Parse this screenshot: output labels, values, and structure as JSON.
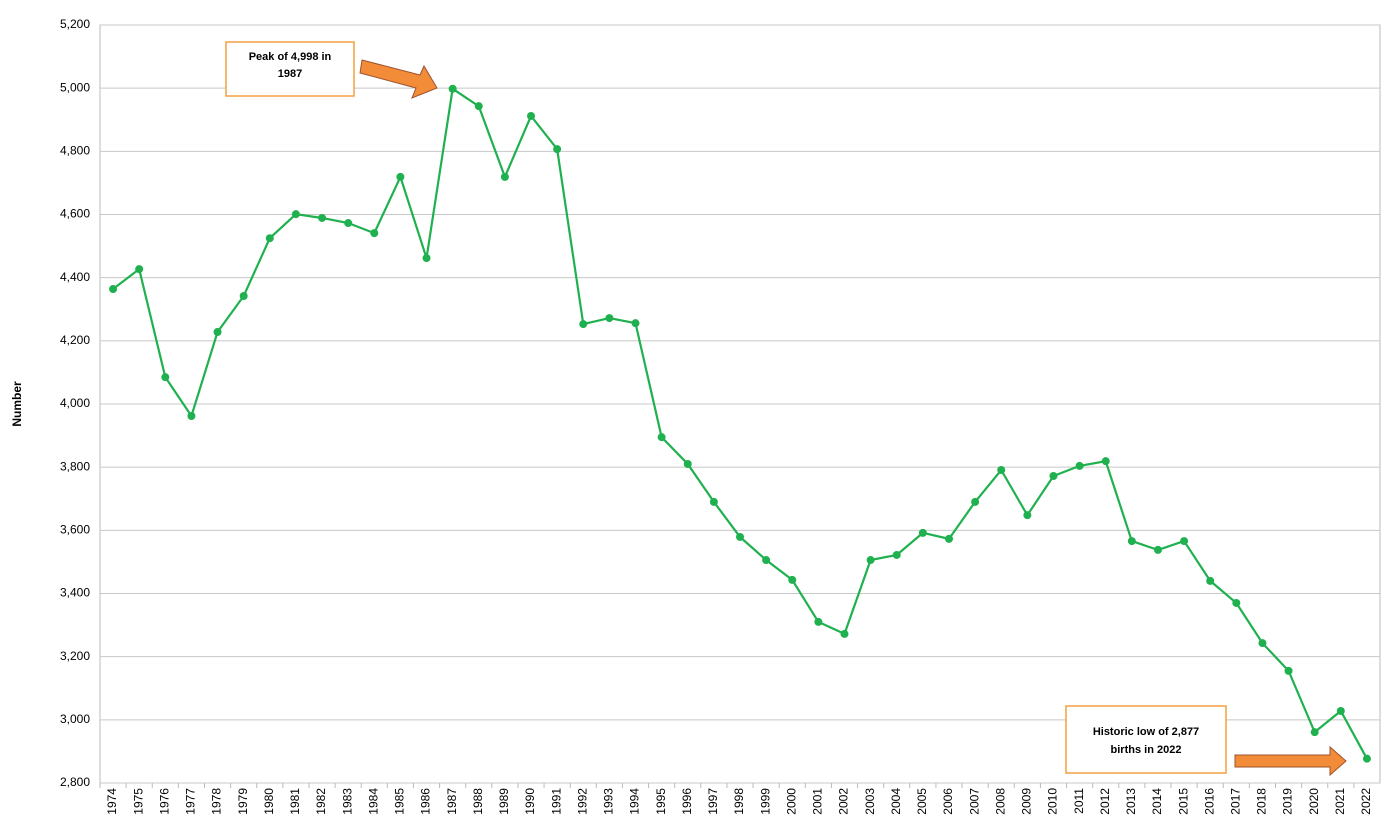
{
  "chart_data": {
    "type": "line",
    "y_label": "Number",
    "categories": [
      "1974",
      "1975",
      "1976",
      "1977",
      "1978",
      "1979",
      "1980",
      "1981",
      "1982",
      "1983",
      "1984",
      "1985",
      "1986",
      "1987",
      "1988",
      "1989",
      "1990",
      "1991",
      "1992",
      "1993",
      "1994",
      "1995",
      "1996",
      "1997",
      "1998",
      "1999",
      "2000",
      "2001",
      "2002",
      "2003",
      "2004",
      "2005",
      "2006",
      "2007",
      "2008",
      "2009",
      "2010",
      "2011",
      "2012",
      "2013",
      "2014",
      "2015",
      "2016",
      "2017",
      "2018",
      "2019",
      "2020",
      "2021",
      "2022"
    ],
    "series": [
      {
        "color": "#1fb14f",
        "values": [
          4364,
          4427,
          4085,
          3962,
          4228,
          4342,
          4525,
          4601,
          4589,
          4573,
          4541,
          4719,
          4462,
          4998,
          4943,
          4719,
          4912,
          4807,
          4253,
          4272,
          4256,
          3895,
          3810,
          3690,
          3579,
          3506,
          3443,
          3310,
          3272,
          3506,
          3522,
          3592,
          3573,
          3690,
          3791,
          3648,
          3772,
          3804,
          3819,
          3566,
          3538,
          3566,
          3440,
          3370,
          3243,
          3155,
          2961,
          3028,
          2877
        ]
      }
    ],
    "ylim": [
      2800,
      5200
    ],
    "yticks": [
      {
        "value": 2800,
        "label": "2,800"
      },
      {
        "value": 3000,
        "label": "3,000"
      },
      {
        "value": 3200,
        "label": "3,200"
      },
      {
        "value": 3400,
        "label": "3,400"
      },
      {
        "value": 3600,
        "label": "3,600"
      },
      {
        "value": 3800,
        "label": "3,800"
      },
      {
        "value": 4000,
        "label": "4,000"
      },
      {
        "value": 4200,
        "label": "4,200"
      },
      {
        "value": 4400,
        "label": "4,400"
      },
      {
        "value": 4600,
        "label": "4,600"
      },
      {
        "value": 4800,
        "label": "4,800"
      },
      {
        "value": 5000,
        "label": "5,000"
      },
      {
        "value": 5200,
        "label": "5,200"
      }
    ],
    "grid": true,
    "annotations": [
      {
        "lines": [
          "Peak of 4,998 in",
          "1987"
        ]
      },
      {
        "lines": [
          "Historic low of 2,877",
          "births in 2022"
        ]
      }
    ]
  }
}
